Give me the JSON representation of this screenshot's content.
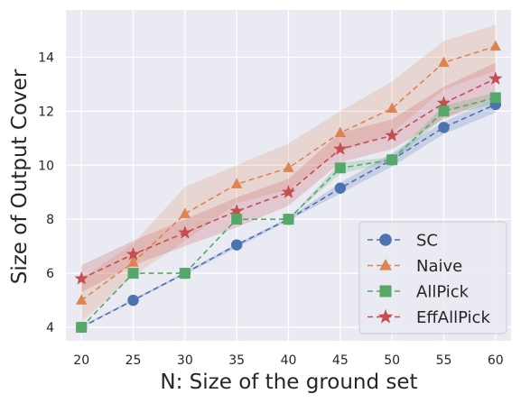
{
  "chart_data": {
    "type": "line",
    "title": "",
    "xlabel": "N: Size of the ground set",
    "ylabel": "Size of Output Cover",
    "x": [
      20,
      25,
      30,
      35,
      40,
      45,
      50,
      55,
      60
    ],
    "xlim": [
      18.5,
      61.5
    ],
    "ylim": [
      3.5,
      15.75
    ],
    "xticks": [
      "20",
      "25",
      "30",
      "35",
      "40",
      "45",
      "50",
      "55",
      "60"
    ],
    "yticks": [
      "4",
      "6",
      "8",
      "10",
      "12",
      "14"
    ],
    "grid": true,
    "legend_position": "lower-right",
    "series": [
      {
        "name": "SC",
        "color": "#4c72b0",
        "marker": "circle",
        "values": [
          4.0,
          5.0,
          6.0,
          7.05,
          8.0,
          9.15,
          10.2,
          11.4,
          12.25
        ],
        "band_low": [
          4.0,
          4.95,
          5.95,
          6.95,
          7.95,
          8.95,
          9.95,
          11.15,
          11.95
        ],
        "band_high": [
          4.05,
          5.05,
          6.05,
          7.1,
          8.05,
          9.35,
          10.45,
          11.6,
          12.5
        ]
      },
      {
        "name": "Naive",
        "color": "#dd8452",
        "marker": "triangle",
        "values": [
          5.0,
          6.4,
          8.2,
          9.3,
          9.9,
          11.2,
          12.1,
          13.8,
          14.4
        ],
        "band_low": [
          4.2,
          5.9,
          7.2,
          8.6,
          9.1,
          10.5,
          11.2,
          12.8,
          13.5
        ],
        "band_high": [
          5.8,
          7.1,
          9.2,
          10.0,
          10.8,
          12.0,
          13.1,
          14.6,
          15.2
        ]
      },
      {
        "name": "AllPick",
        "color": "#55a868",
        "marker": "square",
        "values": [
          4.0,
          6.0,
          6.0,
          8.0,
          8.0,
          9.9,
          10.2,
          12.0,
          12.5
        ],
        "band_low": [
          4.0,
          6.0,
          6.0,
          8.0,
          8.0,
          9.7,
          10.1,
          11.8,
          12.3
        ],
        "band_high": [
          4.0,
          6.0,
          6.0,
          8.0,
          8.0,
          10.1,
          10.3,
          12.2,
          12.7
        ]
      },
      {
        "name": "EffAllPick",
        "color": "#c44e52",
        "marker": "star",
        "values": [
          5.8,
          6.7,
          7.5,
          8.3,
          9.0,
          10.6,
          11.1,
          12.3,
          13.2
        ],
        "band_low": [
          5.3,
          6.3,
          7.0,
          7.7,
          8.5,
          10.1,
          10.6,
          11.7,
          12.5
        ],
        "band_high": [
          6.3,
          7.2,
          8.0,
          8.8,
          9.5,
          11.2,
          11.7,
          12.9,
          13.8
        ]
      }
    ]
  }
}
